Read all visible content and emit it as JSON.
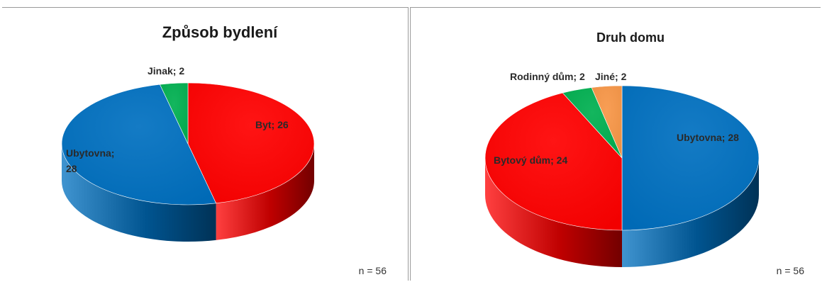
{
  "chart_data": [
    {
      "type": "pie",
      "title": "Způsob bydlení",
      "slices": [
        {
          "label": "Byt; 26",
          "name": "Byt",
          "value": 26,
          "color": "#ff0000"
        },
        {
          "label": "Ubytovna;\n28",
          "name": "Ubytovna",
          "value": 28,
          "color": "#0070c0"
        },
        {
          "label": "Jinak; 2",
          "name": "Jinak",
          "value": 2,
          "color": "#00b050"
        }
      ],
      "note": "n = 56"
    },
    {
      "type": "pie",
      "title": "Druh domu",
      "slices": [
        {
          "label": "Ubytovna; 28",
          "name": "Ubytovna",
          "value": 28,
          "color": "#0070c0"
        },
        {
          "label": "Bytový dům; 24",
          "name": "Bytový dům",
          "value": 24,
          "color": "#ff0000"
        },
        {
          "label": "Rodinný dům; 2",
          "name": "Rodinný dům",
          "value": 2,
          "color": "#00b050"
        },
        {
          "label": "Jiné; 2",
          "name": "Jiné",
          "value": 2,
          "color": "#f79646"
        }
      ],
      "note": "n = 56"
    }
  ]
}
